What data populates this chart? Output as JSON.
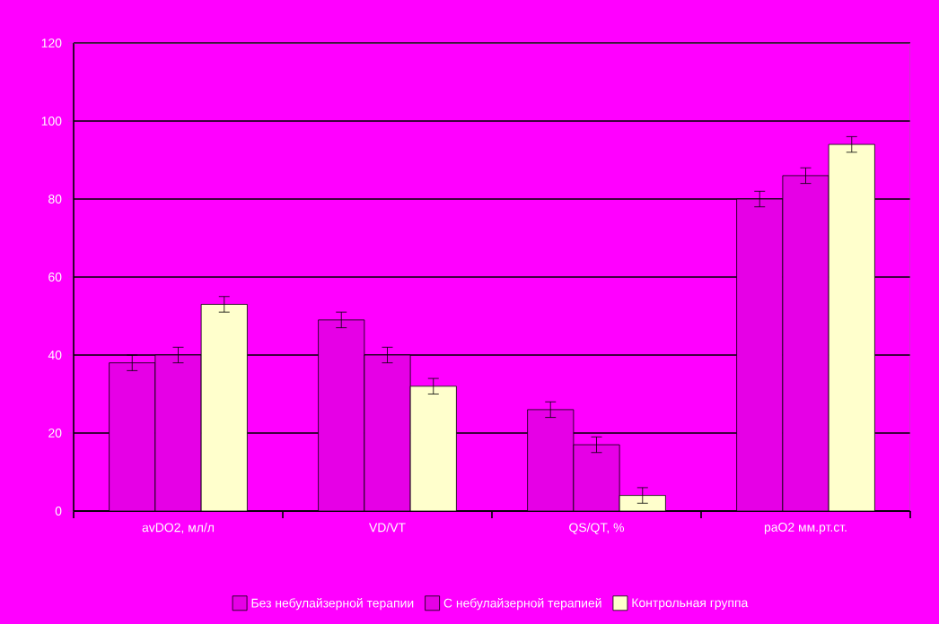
{
  "chart_data": {
    "type": "bar",
    "categories": [
      "avDO2, мл/л",
      "VD/VT",
      "QS/QT, %",
      "paO2  мм.рт.ст."
    ],
    "series": [
      {
        "name": "Без небулайзерной терапии",
        "color": "#e600e6",
        "values": [
          38,
          49,
          26,
          80
        ],
        "errors": [
          2,
          2,
          2,
          2
        ]
      },
      {
        "name": "С небулайзерной терапией",
        "color": "#e600e6",
        "values": [
          40,
          40,
          17,
          86
        ],
        "errors": [
          2,
          2,
          2,
          2
        ]
      },
      {
        "name": "Контрольная группа",
        "color": "#ffffcc",
        "values": [
          53,
          32,
          4,
          94
        ],
        "errors": [
          2,
          2,
          2,
          2
        ]
      }
    ],
    "ylim": [
      0,
      120
    ],
    "yticks": [
      0,
      20,
      40,
      60,
      80,
      100,
      120
    ],
    "grid": "y",
    "legend": "bottom"
  }
}
